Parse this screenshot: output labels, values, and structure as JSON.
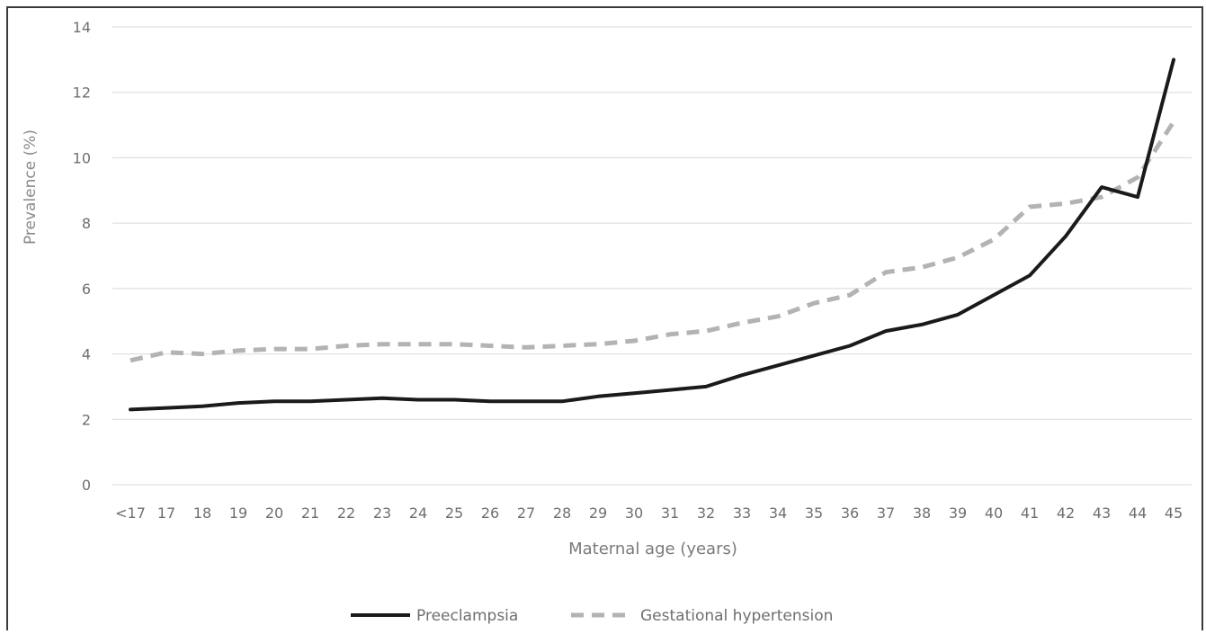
{
  "chart_data": {
    "type": "line",
    "title": "",
    "xlabel": "Maternal age (years)",
    "ylabel": "Prevalence (%)",
    "categories": [
      "<17",
      "17",
      "18",
      "19",
      "20",
      "21",
      "22",
      "23",
      "24",
      "25",
      "26",
      "27",
      "28",
      "29",
      "30",
      "31",
      "32",
      "33",
      "34",
      "35",
      "36",
      "37",
      "38",
      "39",
      "40",
      "41",
      "42",
      "43",
      "44",
      "45"
    ],
    "ylim": [
      0,
      14
    ],
    "yticks": [
      "0",
      "2",
      "4",
      "6",
      "8",
      "10",
      "12",
      "14"
    ],
    "grid": "horizontal",
    "legend_position": "bottom",
    "series": [
      {
        "name": "Preeclampsia",
        "color": "#1a1a1a",
        "style": "solid",
        "values": [
          2.3,
          2.35,
          2.4,
          2.5,
          2.55,
          2.55,
          2.6,
          2.65,
          2.6,
          2.6,
          2.55,
          2.55,
          2.55,
          2.7,
          2.8,
          2.9,
          3.0,
          3.35,
          3.65,
          3.95,
          4.25,
          4.7,
          4.9,
          5.2,
          5.8,
          6.4,
          7.6,
          9.1,
          8.8,
          13.0
        ]
      },
      {
        "name": "Gestational hypertension",
        "color": "#b3b3b3",
        "style": "dashed",
        "values": [
          3.8,
          4.05,
          4.0,
          4.1,
          4.15,
          4.15,
          4.25,
          4.3,
          4.3,
          4.3,
          4.25,
          4.2,
          4.25,
          4.3,
          4.4,
          4.6,
          4.7,
          4.95,
          5.15,
          5.55,
          5.8,
          6.5,
          6.65,
          6.95,
          7.5,
          8.5,
          8.6,
          8.8,
          9.4,
          11.1
        ]
      }
    ]
  }
}
